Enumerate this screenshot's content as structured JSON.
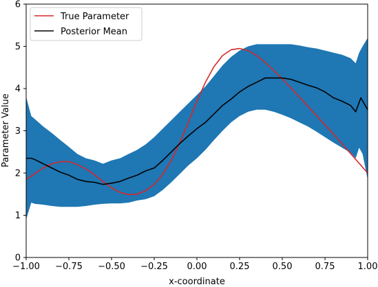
{
  "chart_data": {
    "type": "line",
    "xlabel": "x-coordinate",
    "ylabel": "Parameter Value",
    "xlim": [
      -1.0,
      1.0
    ],
    "ylim": [
      0,
      6
    ],
    "xticks": [
      "−1.00",
      "−0.75",
      "−0.50",
      "−0.25",
      "0.00",
      "0.25",
      "0.50",
      "0.75",
      "1.00"
    ],
    "xtick_values": [
      -1.0,
      -0.75,
      -0.5,
      -0.25,
      0.0,
      0.25,
      0.5,
      0.75,
      1.0
    ],
    "yticks": [
      "0",
      "1",
      "2",
      "3",
      "4",
      "5",
      "6"
    ],
    "ytick_values": [
      0,
      1,
      2,
      3,
      4,
      5,
      6
    ],
    "legend_position": "top-left",
    "grid": false,
    "band": {
      "color": "#1f77b4",
      "x": [
        -1.0,
        -0.97,
        -0.95,
        -0.9,
        -0.85,
        -0.8,
        -0.75,
        -0.7,
        -0.65,
        -0.6,
        -0.55,
        -0.5,
        -0.45,
        -0.4,
        -0.35,
        -0.3,
        -0.25,
        -0.2,
        -0.15,
        -0.1,
        -0.05,
        0.0,
        0.05,
        0.1,
        0.15,
        0.2,
        0.25,
        0.3,
        0.35,
        0.4,
        0.45,
        0.5,
        0.55,
        0.6,
        0.65,
        0.7,
        0.75,
        0.8,
        0.85,
        0.9,
        0.93,
        0.95,
        0.97,
        1.0
      ],
      "upper": [
        3.8,
        3.35,
        3.28,
        3.1,
        2.95,
        2.78,
        2.62,
        2.45,
        2.35,
        2.3,
        2.22,
        2.3,
        2.35,
        2.45,
        2.55,
        2.68,
        2.85,
        3.05,
        3.25,
        3.45,
        3.65,
        3.85,
        4.05,
        4.3,
        4.55,
        4.75,
        4.9,
        5.0,
        5.05,
        5.05,
        5.05,
        5.05,
        5.05,
        5.02,
        4.98,
        4.95,
        4.9,
        4.85,
        4.8,
        4.72,
        4.6,
        4.85,
        5.0,
        5.2
      ],
      "lower": [
        0.9,
        1.3,
        1.27,
        1.25,
        1.22,
        1.2,
        1.2,
        1.2,
        1.22,
        1.25,
        1.27,
        1.28,
        1.28,
        1.3,
        1.35,
        1.38,
        1.45,
        1.6,
        1.78,
        1.98,
        2.18,
        2.35,
        2.55,
        2.78,
        3.0,
        3.2,
        3.35,
        3.45,
        3.5,
        3.5,
        3.45,
        3.38,
        3.3,
        3.2,
        3.1,
        2.98,
        2.85,
        2.72,
        2.6,
        2.48,
        2.35,
        2.6,
        2.45,
        1.85
      ]
    },
    "series": [
      {
        "name": "True Parameter",
        "color": "#d62728",
        "x": [
          -1.0,
          -0.95,
          -0.9,
          -0.85,
          -0.8,
          -0.75,
          -0.7,
          -0.65,
          -0.6,
          -0.55,
          -0.5,
          -0.45,
          -0.4,
          -0.35,
          -0.3,
          -0.25,
          -0.2,
          -0.15,
          -0.1,
          -0.05,
          0.0,
          0.05,
          0.1,
          0.15,
          0.2,
          0.25,
          0.3,
          0.35,
          0.4,
          0.45,
          0.5,
          0.55,
          0.6,
          0.65,
          0.7,
          0.75,
          0.8,
          0.85,
          0.9,
          0.95,
          1.0
        ],
        "values": [
          1.85,
          1.98,
          2.12,
          2.22,
          2.27,
          2.27,
          2.2,
          2.1,
          1.96,
          1.8,
          1.65,
          1.54,
          1.49,
          1.5,
          1.58,
          1.73,
          1.97,
          2.3,
          2.72,
          3.2,
          3.7,
          4.15,
          4.52,
          4.78,
          4.92,
          4.95,
          4.9,
          4.78,
          4.62,
          4.43,
          4.23,
          4.02,
          3.8,
          3.58,
          3.36,
          3.14,
          2.92,
          2.69,
          2.46,
          2.23,
          2.0
        ]
      },
      {
        "name": "Posterior Mean",
        "color": "#000000",
        "x": [
          -1.0,
          -0.97,
          -0.95,
          -0.9,
          -0.85,
          -0.8,
          -0.75,
          -0.7,
          -0.65,
          -0.6,
          -0.55,
          -0.5,
          -0.45,
          -0.4,
          -0.35,
          -0.3,
          -0.25,
          -0.2,
          -0.15,
          -0.1,
          -0.05,
          0.0,
          0.05,
          0.1,
          0.15,
          0.2,
          0.25,
          0.3,
          0.35,
          0.4,
          0.45,
          0.5,
          0.55,
          0.6,
          0.65,
          0.7,
          0.75,
          0.8,
          0.85,
          0.9,
          0.93,
          0.96,
          1.0
        ],
        "values": [
          2.35,
          2.35,
          2.32,
          2.22,
          2.12,
          2.02,
          1.95,
          1.85,
          1.8,
          1.78,
          1.73,
          1.76,
          1.8,
          1.88,
          1.95,
          2.05,
          2.12,
          2.3,
          2.5,
          2.7,
          2.88,
          3.05,
          3.2,
          3.4,
          3.6,
          3.75,
          3.92,
          4.05,
          4.15,
          4.25,
          4.25,
          4.25,
          4.22,
          4.15,
          4.08,
          4.02,
          3.92,
          3.78,
          3.7,
          3.6,
          3.45,
          3.78,
          3.5
        ]
      }
    ]
  }
}
